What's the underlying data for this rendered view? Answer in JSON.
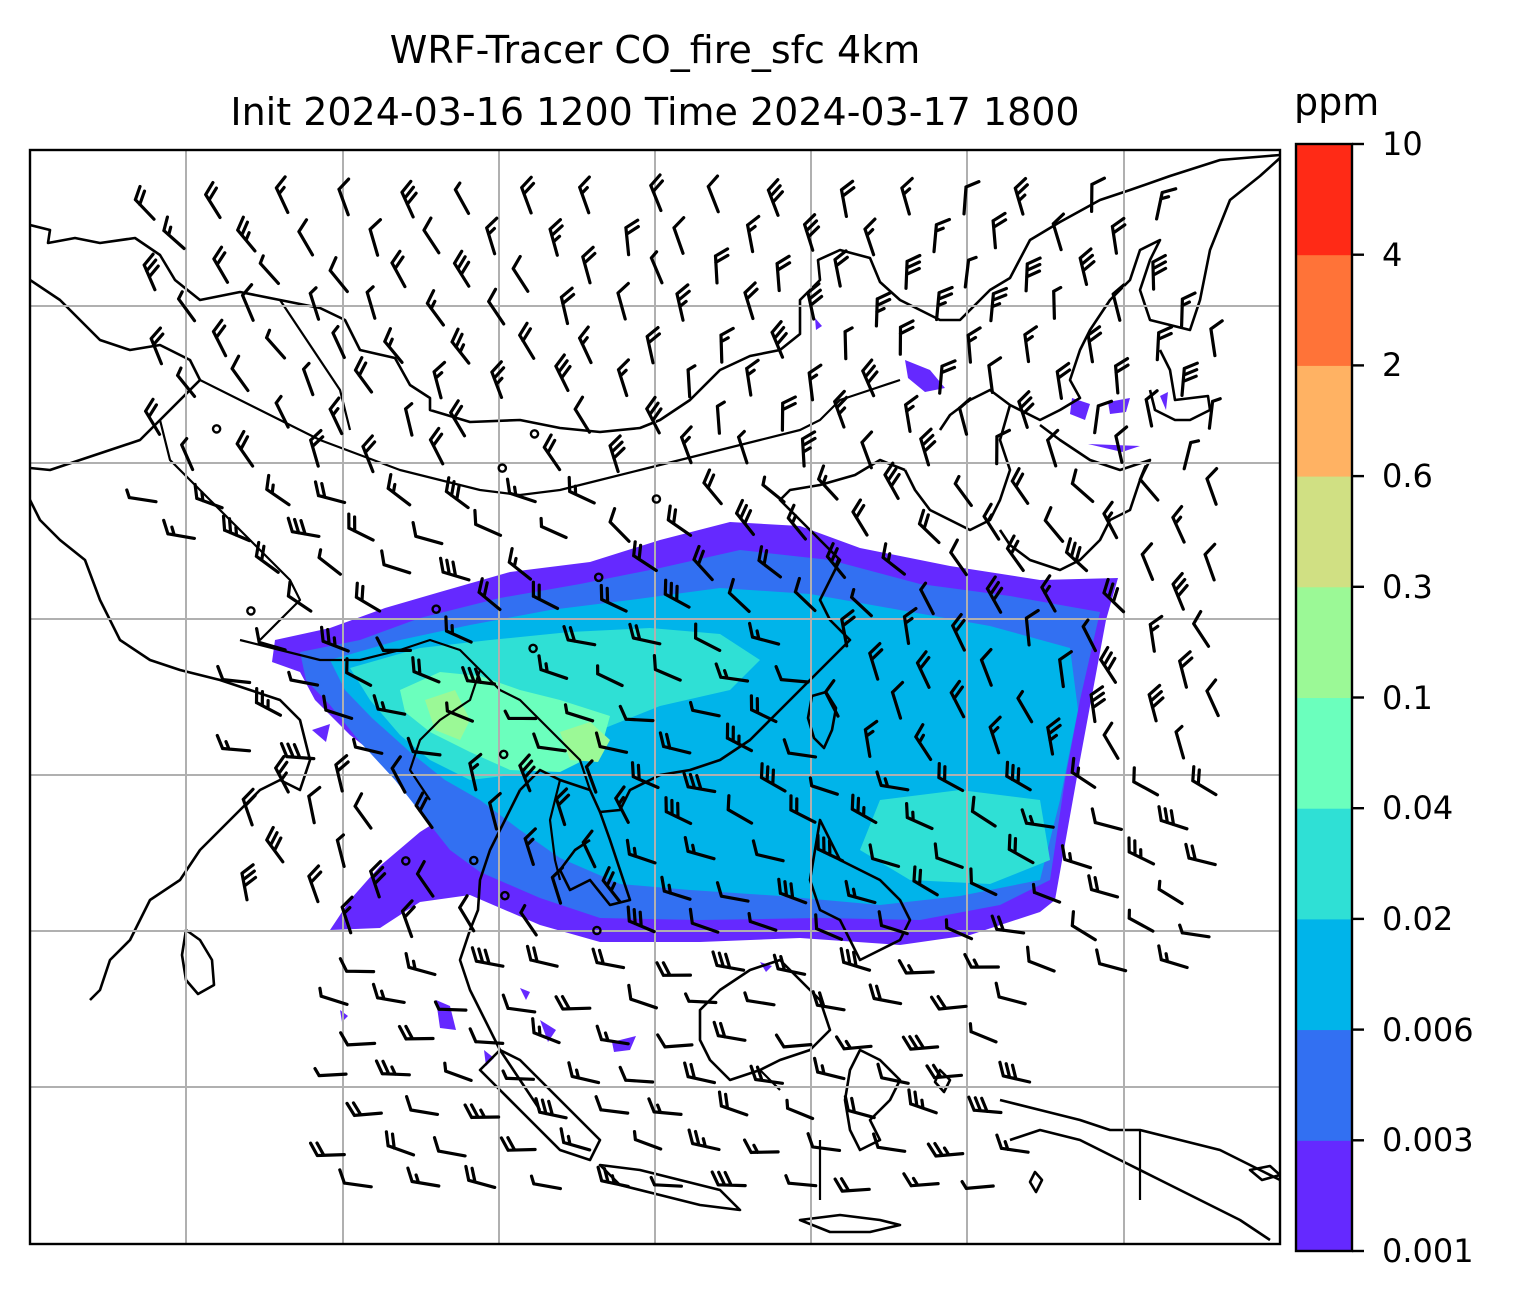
{
  "title": {
    "line1": "WRF-Tracer CO_fire_sfc 4km",
    "line2": "Init 2024-03-16 1200 Time 2024-03-17 1800"
  },
  "colorbar": {
    "unit": "ppm",
    "levels": [
      "0.001",
      "0.003",
      "0.006",
      "0.02",
      "0.04",
      "0.1",
      "0.3",
      "0.6",
      "2",
      "4",
      "10"
    ],
    "colors": [
      "#6529ff",
      "#3270f2",
      "#00b4ea",
      "#2fe0d5",
      "#6bffbd",
      "#9bf996",
      "#d0e083",
      "#ffb263",
      "#ff7338",
      "#ff2a16"
    ]
  },
  "map": {
    "variable": "CO_fire_sfc",
    "gridlines": true,
    "features": [
      "coastlines",
      "country-borders",
      "wind-barbs",
      "filled-contours"
    ]
  }
}
